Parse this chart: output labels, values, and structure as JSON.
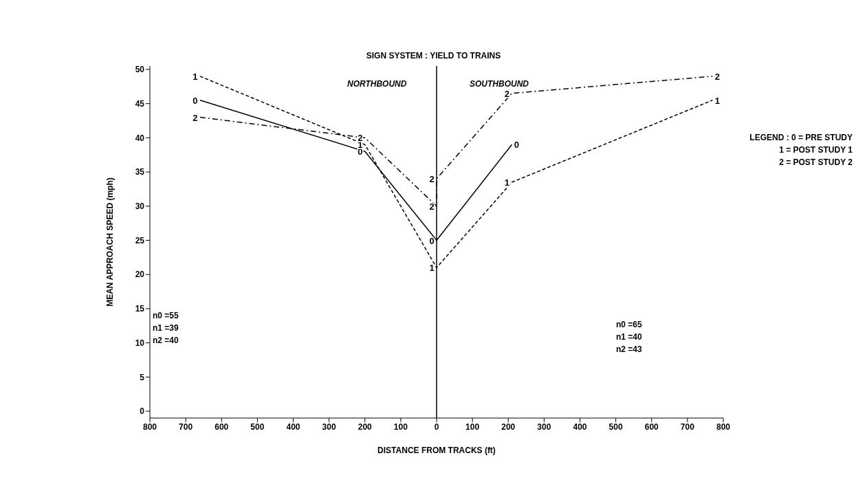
{
  "chart_data": {
    "type": "line",
    "title": "SIGN SYSTEM : YIELD TO TRAINS",
    "xlabel": "DISTANCE FROM TRACKS (ft)",
    "ylabel": "MEAN APPROACH SPEED (mph)",
    "series": [
      {
        "name": "0",
        "color": "#000000",
        "line_style": "solid",
        "x": [
          -660,
          -200,
          0,
          0,
          210
        ],
        "values": [
          45.5,
          38,
          25,
          25,
          39
        ]
      },
      {
        "name": "1",
        "color": "#000000",
        "line_style": "dashed",
        "x": [
          -660,
          -200,
          0,
          0,
          210,
          770
        ],
        "values": [
          49,
          39,
          21,
          21,
          33.5,
          45.5
        ]
      },
      {
        "name": "2",
        "color": "#000000",
        "line_style": "dashdot",
        "x": [
          -660,
          -200,
          0,
          0,
          210,
          770
        ],
        "values": [
          43,
          40,
          30,
          34,
          46.5,
          49
        ]
      }
    ],
    "xlim": [
      -800,
      800
    ],
    "xticks": [
      {
        "value": -800,
        "label": "800"
      },
      {
        "value": -700,
        "label": "700"
      },
      {
        "value": -600,
        "label": "600"
      },
      {
        "value": -500,
        "label": "500"
      },
      {
        "value": -400,
        "label": "400"
      },
      {
        "value": -300,
        "label": "300"
      },
      {
        "value": -200,
        "label": "200"
      },
      {
        "value": -100,
        "label": "100"
      },
      0,
      100,
      200,
      300,
      400,
      500,
      600,
      700,
      800
    ],
    "ylim": [
      -1,
      50.5
    ],
    "yticks": [
      0,
      5,
      10,
      15,
      20,
      25,
      30,
      35,
      40,
      45,
      50
    ],
    "ref_lines": [
      {
        "axis": "x",
        "value": 0,
        "color": "#000000"
      }
    ],
    "annotations": [
      "NORTHBOUND",
      "SOUTHBOUND",
      "n0 =55",
      "n1 =39",
      "n2 =40",
      "n0 =65",
      "n1 =40",
      "n2 =43",
      "LEGEND : 0 = PRE STUDY",
      "1 = POST STUDY 1",
      "2 = POST STUDY 2"
    ]
  }
}
